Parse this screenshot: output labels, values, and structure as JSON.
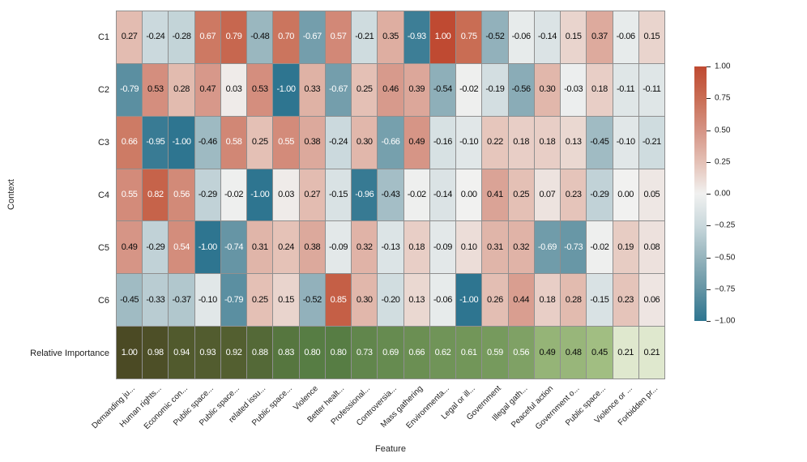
{
  "figure": {
    "xlabel": "Feature",
    "ylabel": "Context"
  },
  "chart_data": {
    "type": "heatmap",
    "title": "",
    "xlabel": "Feature",
    "ylabel": "Context",
    "x_categories": [
      "Demanding ju...",
      "Human rights...",
      "Economic con...",
      "Public space...",
      "Public space...",
      "related issu...",
      "Public space...",
      "Violence",
      "Better healt...",
      "Professional...",
      "Controversia...",
      "Mass gathering",
      "Environmenta...",
      "Legal or ill...",
      "Government",
      "Illegal gath...",
      "Peaceful action",
      "Government o...",
      "Public space...",
      "Violence or ...",
      "Forbidden pr..."
    ],
    "y_categories": [
      "C1",
      "C2",
      "C3",
      "C4",
      "C5",
      "C6",
      "Relative Importance"
    ],
    "matrix": [
      [
        0.27,
        -0.24,
        -0.28,
        0.67,
        0.79,
        -0.48,
        0.7,
        -0.67,
        0.57,
        -0.21,
        0.35,
        -0.93,
        1.0,
        0.75,
        -0.52,
        -0.06,
        -0.14,
        0.15,
        0.37,
        -0.06,
        0.15
      ],
      [
        -0.79,
        0.53,
        0.28,
        0.47,
        0.03,
        0.53,
        -1.0,
        0.33,
        -0.67,
        0.25,
        0.46,
        0.39,
        -0.54,
        -0.02,
        -0.19,
        -0.56,
        0.3,
        -0.03,
        0.18,
        -0.11,
        -0.11
      ],
      [
        0.66,
        -0.95,
        -1.0,
        -0.46,
        0.58,
        0.25,
        0.55,
        0.38,
        -0.24,
        0.3,
        -0.66,
        0.49,
        -0.16,
        -0.1,
        0.22,
        0.18,
        0.18,
        0.13,
        -0.45,
        -0.1,
        -0.21
      ],
      [
        0.55,
        0.82,
        0.56,
        -0.29,
        -0.02,
        -1.0,
        0.03,
        0.27,
        -0.15,
        -0.96,
        -0.43,
        -0.02,
        -0.14,
        0.0,
        0.41,
        0.25,
        0.07,
        0.23,
        -0.29,
        0.0,
        0.05
      ],
      [
        0.49,
        -0.29,
        0.54,
        -1.0,
        -0.74,
        0.31,
        0.24,
        0.38,
        -0.09,
        0.32,
        -0.13,
        0.18,
        -0.09,
        0.1,
        0.31,
        0.32,
        -0.69,
        -0.73,
        -0.02,
        0.19,
        0.08
      ],
      [
        -0.45,
        -0.33,
        -0.37,
        -0.1,
        -0.79,
        0.25,
        0.15,
        -0.52,
        0.85,
        0.3,
        -0.2,
        0.13,
        -0.06,
        -1.0,
        0.26,
        0.44,
        0.18,
        0.28,
        -0.15,
        0.23,
        0.06
      ],
      [
        1.0,
        0.98,
        0.94,
        0.93,
        0.92,
        0.88,
        0.83,
        0.8,
        0.8,
        0.73,
        0.69,
        0.66,
        0.62,
        0.61,
        0.59,
        0.56,
        0.49,
        0.48,
        0.45,
        0.21,
        0.21
      ]
    ],
    "value_decimals": 2,
    "colorbar": {
      "min": -1,
      "max": 1,
      "ticks": [
        {
          "label": "1.00",
          "value": 1.0
        },
        {
          "label": "0.75",
          "value": 0.75
        },
        {
          "label": "0.50",
          "value": 0.5
        },
        {
          "label": "0.25",
          "value": 0.25
        },
        {
          "label": "0.00",
          "value": 0.0
        },
        {
          "label": "−0.25",
          "value": -0.25
        },
        {
          "label": "−0.50",
          "value": -0.5
        },
        {
          "label": "−0.75",
          "value": -0.75
        },
        {
          "label": "−1.00",
          "value": -1.0
        }
      ]
    },
    "palettes": {
      "diverging_anchors": [
        [
          -1.0,
          "#2e7590"
        ],
        [
          -0.75,
          "#6494a4"
        ],
        [
          -0.5,
          "#96b4bd"
        ],
        [
          -0.25,
          "#c9d8dc"
        ],
        [
          0.0,
          "#f1f1f0"
        ],
        [
          0.25,
          "#e4c0b5"
        ],
        [
          0.5,
          "#d59384"
        ],
        [
          0.75,
          "#c96d54"
        ],
        [
          1.0,
          "#bf4a32"
        ]
      ],
      "importance_anchors": [
        [
          0.2,
          "#e2ead1"
        ],
        [
          0.45,
          "#a1be82"
        ],
        [
          0.6,
          "#73975a"
        ],
        [
          0.8,
          "#577d44"
        ],
        [
          0.92,
          "#535f30"
        ],
        [
          1.0,
          "#4b4a24"
        ]
      ]
    },
    "text_colors": {
      "light": "#ffffff",
      "dark": "#0a0a0a"
    },
    "text_luminance_threshold": 0.346,
    "gridline_color": "#8f8f8f",
    "legend_position": "right",
    "grid": false
  }
}
